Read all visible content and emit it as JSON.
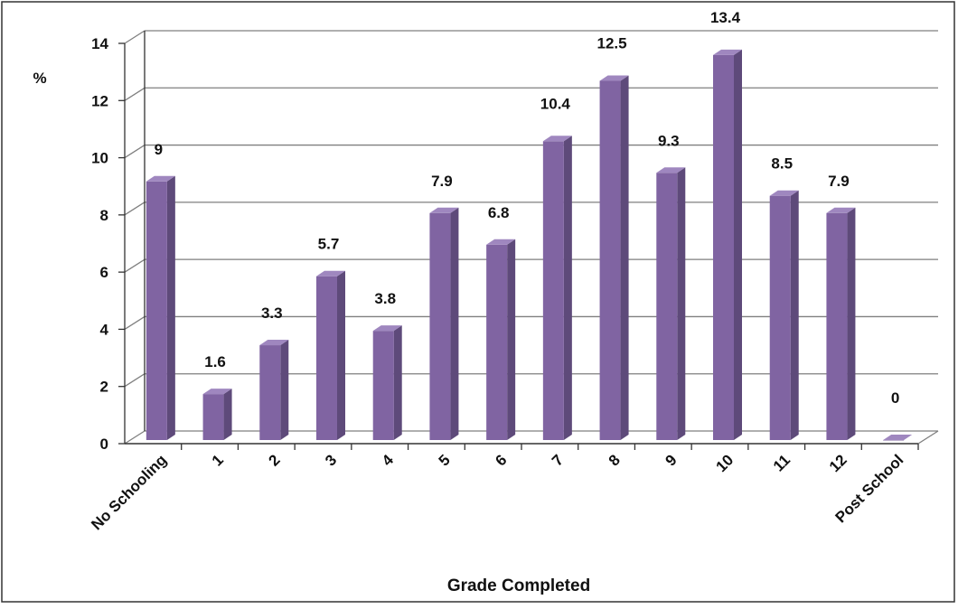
{
  "chart_data": {
    "type": "bar",
    "categories": [
      "No Schooling",
      "1",
      "2",
      "3",
      "4",
      "5",
      "6",
      "7",
      "8",
      "9",
      "10",
      "11",
      "12",
      "Post School"
    ],
    "values": [
      9,
      1.6,
      3.3,
      5.7,
      3.8,
      7.9,
      6.8,
      10.4,
      12.5,
      9.3,
      13.4,
      8.5,
      7.9,
      0
    ],
    "data_labels": [
      "9",
      "1.6",
      "3.3",
      "5.7",
      "3.8",
      "7.9",
      "6.8",
      "10.4",
      "12.5",
      "9.3",
      "13.4",
      "8.5",
      "7.9",
      "0"
    ],
    "yticks": [
      "0",
      "2",
      "4",
      "6",
      "8",
      "10",
      "12",
      "14"
    ],
    "ylim": [
      0,
      14
    ],
    "ylabel": "%",
    "xlabel": "Grade Completed",
    "title": "",
    "grid": true,
    "legend": "none",
    "bar_color": "#8064A2",
    "bar_side_color": "#5E4A7A",
    "bar_top_color": "#9F87BF",
    "grid_color": "#7f7f7f",
    "frame_color": "#333333"
  }
}
